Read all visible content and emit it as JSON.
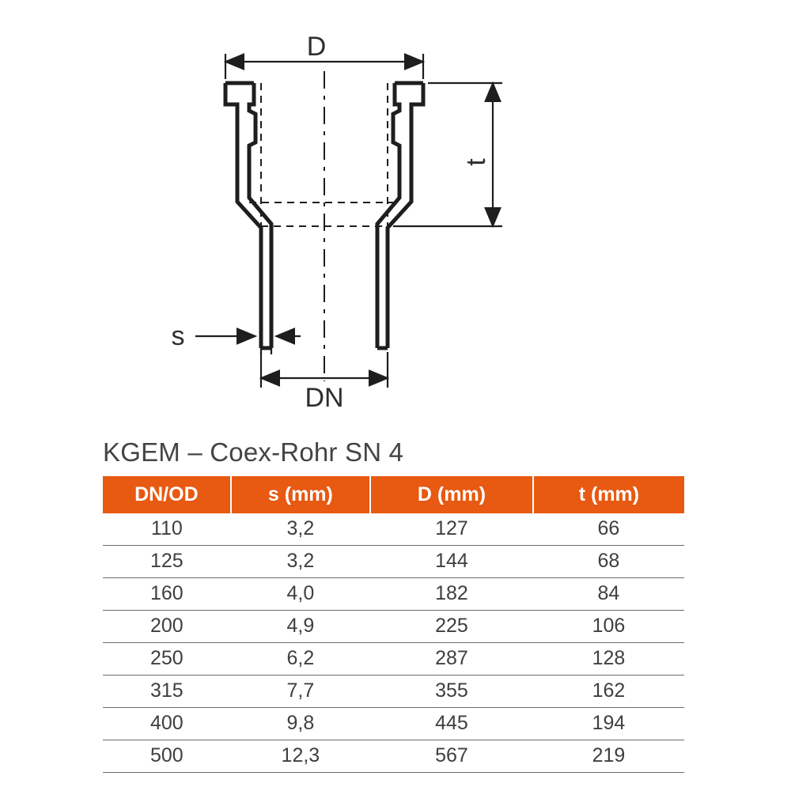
{
  "diagram": {
    "type": "engineering-drawing",
    "labels": {
      "D": "D",
      "t": "t",
      "s": "s",
      "DN": "DN"
    },
    "stroke_color": "#1e1e1e",
    "stroke_width_main": 5,
    "stroke_width_dim": 2.2,
    "background": "#ffffff",
    "arrow_size": 10,
    "font_size": 34
  },
  "title": "KGEM – Coex-Rohr SN 4",
  "title_fontsize": 33,
  "title_color": "#444444",
  "table": {
    "header_bg": "#e85912",
    "header_text_color": "#ffffff",
    "cell_text_color": "#3f3f3f",
    "border_color": "#6b6b6b",
    "font_size": 25,
    "columns": [
      {
        "key": "dn",
        "label": "DN/OD",
        "width_pct": 22
      },
      {
        "key": "s",
        "label": "s (mm)",
        "width_pct": 24
      },
      {
        "key": "D",
        "label": "D (mm)",
        "width_pct": 28
      },
      {
        "key": "t",
        "label": "t (mm)",
        "width_pct": 26
      }
    ],
    "rows": [
      {
        "dn": "110",
        "s": "3,2",
        "D": "127",
        "t": "66"
      },
      {
        "dn": "125",
        "s": "3,2",
        "D": "144",
        "t": "68"
      },
      {
        "dn": "160",
        "s": "4,0",
        "D": "182",
        "t": "84"
      },
      {
        "dn": "200",
        "s": "4,9",
        "D": "225",
        "t": "106"
      },
      {
        "dn": "250",
        "s": "6,2",
        "D": "287",
        "t": "128"
      },
      {
        "dn": "315",
        "s": "7,7",
        "D": "355",
        "t": "162"
      },
      {
        "dn": "400",
        "s": "9,8",
        "D": "445",
        "t": "194"
      },
      {
        "dn": "500",
        "s": "12,3",
        "D": "567",
        "t": "219"
      }
    ]
  }
}
